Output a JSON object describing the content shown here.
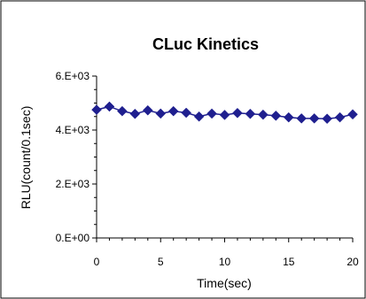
{
  "chart_data": {
    "type": "line",
    "title": "CLuc Kinetics",
    "xlabel": "Time(sec)",
    "ylabel": "RLU(count/0.1sec)",
    "xlim": [
      0,
      20
    ],
    "ylim": [
      0,
      6000
    ],
    "x_ticks": [
      "0",
      "5",
      "10",
      "15",
      "20"
    ],
    "y_ticks": [
      "0.E+00",
      "2.E+03",
      "4.E+03",
      "6.E+03"
    ],
    "grid": false,
    "legend": "none",
    "marker": "diamond",
    "series": [
      {
        "color": "#1f1f8f",
        "x": [
          0,
          1,
          2,
          3,
          4,
          5,
          6,
          7,
          8,
          9,
          10,
          11,
          12,
          13,
          14,
          15,
          16,
          17,
          18,
          19,
          20
        ],
        "values": [
          4750,
          4870,
          4700,
          4600,
          4730,
          4610,
          4700,
          4640,
          4500,
          4610,
          4560,
          4630,
          4600,
          4570,
          4530,
          4470,
          4430,
          4430,
          4420,
          4470,
          4580
        ]
      }
    ]
  }
}
